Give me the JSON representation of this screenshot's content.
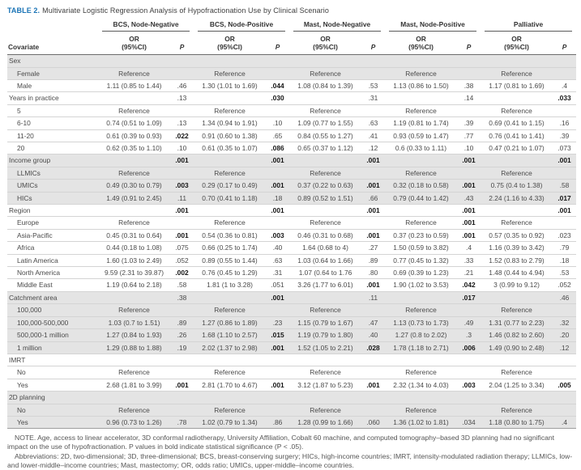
{
  "title": {
    "label": "TABLE 2.",
    "text": "Multivariate Logistic Regression Analysis of Hypofractionation Use by Clinical Scenario"
  },
  "header": {
    "covariate": "Covariate",
    "groups": [
      "BCS, Node-Negative",
      "BCS, Node-Positive",
      "Mast, Node-Negative",
      "Mast, Node-Positive",
      "Palliative"
    ],
    "or_line1": "OR",
    "or_line2": "(95%CI)",
    "p": "P"
  },
  "rows": [
    {
      "label": "Sex",
      "section": true,
      "shaded": true,
      "cells": [
        "",
        "",
        "",
        "",
        "",
        "",
        "",
        "",
        "",
        ""
      ],
      "bold": []
    },
    {
      "label": "Female",
      "section": false,
      "shaded": true,
      "cells": [
        "Reference",
        "",
        "Reference",
        "",
        "Reference",
        "",
        "Reference",
        "",
        "Reference",
        ""
      ],
      "bold": []
    },
    {
      "label": "Male",
      "section": false,
      "shaded": false,
      "cells": [
        "1.11 (0.85 to 1.44)",
        ".46",
        "1.30 (1.01 to 1.69)",
        ".044",
        "1.08 (0.84 to 1.39)",
        ".53",
        "1.13 (0.86 to 1.50)",
        ".38",
        "1.17 (0.81 to 1.69)",
        ".4"
      ],
      "bold": [
        3
      ]
    },
    {
      "label": "Years in practice",
      "section": true,
      "shaded": false,
      "cells": [
        "",
        ".13",
        "",
        ".030",
        "",
        ".31",
        "",
        ".14",
        "",
        ".033"
      ],
      "bold": [
        3,
        9
      ]
    },
    {
      "label": "5",
      "section": false,
      "shaded": false,
      "cells": [
        "Reference",
        "",
        "Reference",
        "",
        "Reference",
        "",
        "Reference",
        "",
        "Reference",
        ""
      ],
      "bold": []
    },
    {
      "label": "6-10",
      "section": false,
      "shaded": false,
      "cells": [
        "0.74 (0.51 to 1.09)",
        ".13",
        "1.34 (0.94 to 1.91)",
        ".10",
        "1.09 (0.77 to 1.55)",
        ".63",
        "1.19 (0.81 to 1.74)",
        ".39",
        "0.69 (0.41 to 1.15)",
        ".16"
      ],
      "bold": []
    },
    {
      "label": "11-20",
      "section": false,
      "shaded": false,
      "cells": [
        "0.61 (0.39 to 0.93)",
        ".022",
        "0.91 (0.60 to 1.38)",
        ".65",
        "0.84 (0.55 to 1.27)",
        ".41",
        "0.93 (0.59 to 1.47)",
        ".77",
        "0.76 (0.41 to 1.41)",
        ".39"
      ],
      "bold": [
        1
      ]
    },
    {
      "label": "20",
      "section": false,
      "shaded": false,
      "cells": [
        "0.62 (0.35 to 1.10)",
        ".10",
        "0.61 (0.35 to 1.07)",
        ".086",
        "0.65 (0.37 to 1.12)",
        ".12",
        "0.6 (0.33 to 1.11)",
        ".10",
        "0.47 (0.21 to 1.07)",
        ".073"
      ],
      "bold": [
        3
      ]
    },
    {
      "label": "Income group",
      "section": true,
      "shaded": true,
      "cells": [
        "",
        ".001",
        "",
        ".001",
        "",
        ".001",
        "",
        ".001",
        "",
        ".001"
      ],
      "bold": [
        1,
        3,
        5,
        7,
        9
      ]
    },
    {
      "label": "LLMICs",
      "section": false,
      "shaded": true,
      "cells": [
        "Reference",
        "",
        "Reference",
        "",
        "Reference",
        "",
        "Reference",
        "",
        "Reference",
        ""
      ],
      "bold": []
    },
    {
      "label": "UMICs",
      "section": false,
      "shaded": true,
      "cells": [
        "0.49 (0.30 to 0.79)",
        ".003",
        "0.29 (0.17 to 0.49)",
        ".001",
        "0.37 (0.22 to 0.63)",
        ".001",
        "0.32 (0.18 to 0.58)",
        ".001",
        "0.75 (0.4 to 1.38)",
        ".58"
      ],
      "bold": [
        1,
        3,
        5,
        7
      ]
    },
    {
      "label": "HICs",
      "section": false,
      "shaded": true,
      "cells": [
        "1.49 (0.91 to 2.45)",
        ".11",
        "0.70 (0.41 to 1.18)",
        ".18",
        "0.89 (0.52 to 1.51)",
        ".66",
        "0.79 (0.44 to 1.42)",
        ".43",
        "2.24 (1.16 to 4.33)",
        ".017"
      ],
      "bold": [
        9
      ]
    },
    {
      "label": "Region",
      "section": true,
      "shaded": false,
      "cells": [
        "",
        ".001",
        "",
        ".001",
        "",
        ".001",
        "",
        ".001",
        "",
        ".001"
      ],
      "bold": [
        1,
        3,
        5,
        7,
        9
      ]
    },
    {
      "label": "Europe",
      "section": false,
      "shaded": false,
      "cells": [
        "Reference",
        "",
        "Reference",
        "",
        "Reference",
        "",
        "Reference",
        ".001",
        "Reference",
        ""
      ],
      "bold": [
        7
      ]
    },
    {
      "label": "Asia-Pacific",
      "section": false,
      "shaded": false,
      "cells": [
        "0.45 (0.31 to 0.64)",
        ".001",
        "0.54 (0.36 to 0.81)",
        ".003",
        "0.46 (0.31 to 0.68)",
        ".001",
        "0.37 (0.23 to 0.59)",
        ".001",
        "0.57 (0.35 to 0.92)",
        ".023"
      ],
      "bold": [
        1,
        3,
        5,
        7
      ]
    },
    {
      "label": "Africa",
      "section": false,
      "shaded": false,
      "cells": [
        "0.44 (0.18 to 1.08)",
        ".075",
        "0.66 (0.25 to 1.74)",
        ".40",
        "1.64 (0.68 to 4)",
        ".27",
        "1.50 (0.59 to 3.82)",
        ".4",
        "1.16 (0.39 to 3.42)",
        ".79"
      ],
      "bold": []
    },
    {
      "label": "Latin America",
      "section": false,
      "shaded": false,
      "cells": [
        "1.60 (1.03 to 2.49)",
        ".052",
        "0.89 (0.55 to 1.44)",
        ".63",
        "1.03 (0.64 to 1.66)",
        ".89",
        "0.77 (0.45 to 1.32)",
        ".33",
        "1.52 (0.83 to 2.79)",
        ".18"
      ],
      "bold": []
    },
    {
      "label": "North America",
      "section": false,
      "shaded": false,
      "cells": [
        "9.59 (2.31 to 39.87)",
        ".002",
        "0.76 (0.45 to 1.29)",
        ".31",
        "1.07 (0.64 to 1.76",
        ".80",
        "0.69 (0.39 to 1.23)",
        ".21",
        "1.48 (0.44 to 4.94)",
        ".53"
      ],
      "bold": [
        1
      ]
    },
    {
      "label": "Middle East",
      "section": false,
      "shaded": false,
      "cells": [
        "1.19 (0.64 to 2.18)",
        ".58",
        "1.81 (1 to 3.28)",
        ".051",
        "3.26 (1.77 to 6.01)",
        ".001",
        "1.90 (1.02 to 3.53)",
        ".042",
        "3 (0.99 to 9.12)",
        ".052"
      ],
      "bold": [
        5,
        7
      ]
    },
    {
      "label": "Catchment area",
      "section": true,
      "shaded": true,
      "cells": [
        "",
        ".38",
        "",
        ".001",
        "",
        ".11",
        "",
        ".017",
        "",
        ".46"
      ],
      "bold": [
        3,
        7
      ]
    },
    {
      "label": "100,000",
      "section": false,
      "shaded": true,
      "cells": [
        "Reference",
        "",
        "Reference",
        "",
        "Reference",
        "",
        "Reference",
        "",
        "Reference",
        ""
      ],
      "bold": []
    },
    {
      "label": "100,000-500,000",
      "section": false,
      "shaded": true,
      "cells": [
        "1.03 (0.7 to 1.51)",
        ".89",
        "1.27 (0.86 to 1.89)",
        ".23",
        "1.15 (0.79 to 1.67)",
        ".47",
        "1.13 (0.73 to 1.73)",
        ".49",
        "1.31 (0.77 to 2.23)",
        ".32"
      ],
      "bold": []
    },
    {
      "label": "500,000-1 million",
      "section": false,
      "shaded": true,
      "cells": [
        "1.27 (0.84 to 1.93)",
        ".26",
        "1.68 (1.10 to 2.57)",
        ".015",
        "1.19 (0.79 to 1.80)",
        ".40",
        "1.27 (0.8 to 2.02)",
        ".3",
        "1.46 (0.82 to 2.60)",
        ".20"
      ],
      "bold": [
        3
      ]
    },
    {
      "label": "1 million",
      "section": false,
      "shaded": true,
      "cells": [
        "1.29 (0.88 to 1.88)",
        ".19",
        "2.02 (1.37 to 2.98)",
        ".001",
        "1.52 (1.05 to 2.21)",
        ".028",
        "1.78 (1.18 to 2.71)",
        ".006",
        "1.49 (0.90 to 2.48)",
        ".12"
      ],
      "bold": [
        3,
        5,
        7
      ]
    },
    {
      "label": "IMRT",
      "section": true,
      "shaded": false,
      "cells": [
        "",
        "",
        "",
        "",
        "",
        "",
        "",
        "",
        "",
        ""
      ],
      "bold": []
    },
    {
      "label": "No",
      "section": false,
      "shaded": false,
      "cells": [
        "Reference",
        "",
        "Reference",
        "",
        "Reference",
        "",
        "Reference",
        "",
        "Reference",
        ""
      ],
      "bold": []
    },
    {
      "label": "Yes",
      "section": false,
      "shaded": false,
      "cells": [
        "2.68 (1.81 to 3.99)",
        ".001",
        "2.81 (1.70 to 4.67)",
        ".001",
        "3.12 (1.87 to 5.23)",
        ".001",
        "2.32 (1.34 to 4.03)",
        ".003",
        "2.04 (1.25 to 3.34)",
        ".005"
      ],
      "bold": [
        1,
        3,
        5,
        7,
        9
      ]
    },
    {
      "label": "2D planning",
      "section": true,
      "shaded": true,
      "cells": [
        "",
        "",
        "",
        "",
        "",
        "",
        "",
        "",
        "",
        ""
      ],
      "bold": []
    },
    {
      "label": "No",
      "section": false,
      "shaded": true,
      "cells": [
        "Reference",
        "",
        "Reference",
        "",
        "Reference",
        "",
        "Reference",
        "",
        "Reference",
        ""
      ],
      "bold": []
    },
    {
      "label": "Yes",
      "section": false,
      "shaded": true,
      "cells": [
        "0.96 (0.73 to 1.26)",
        ".78",
        "1.02 (0.79 to 1.34)",
        ".86",
        "1.28 (0.99 to 1.66)",
        ".060",
        "1.36 (1.02 to 1.81)",
        ".034",
        "1.18 (0.80 to 1.75)",
        ".4"
      ],
      "bold": []
    }
  ],
  "footnotes": {
    "note": "NOTE. Age, access to linear accelerator, 3D conformal radiotherapy, University Affiliation, Cobalt 60 machine, and computed tomography–based 3D planning had no significant impact on the use of hypofractionation. P values in bold indicate statistical significance (P < .05).",
    "abbreviations": "Abbreviations: 2D, two-dimensional; 3D, three-dimensional; BCS, breast-conserving surgery; HICs, high-income countries; IMRT, intensity-modulated radiation therapy; LLMICs, low- and lower-middle–income countries; Mast, mastectomy; OR, odds ratio; UMICs, upper-middle–income countries."
  }
}
